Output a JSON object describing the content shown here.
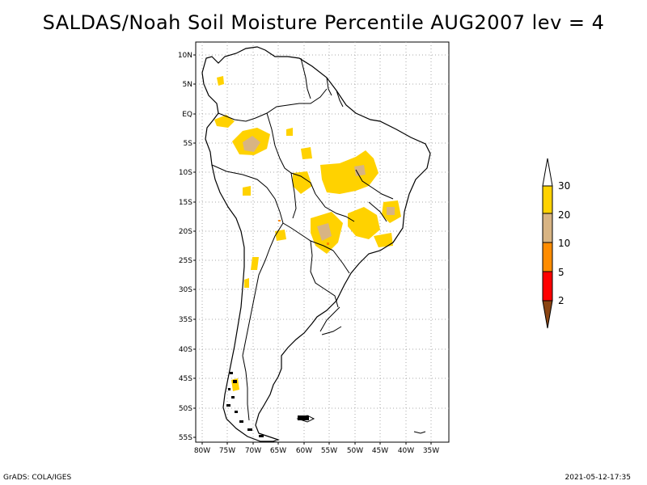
{
  "title": "SALDAS/Noah Soil Moisture Percentile AUG2007 lev = 4",
  "footer": {
    "left": "GrADS: COLA/IGES",
    "right": "2021-05-12-17:35"
  },
  "map": {
    "lat_labels": [
      "10N",
      "5N",
      "EQ",
      "5S",
      "10S",
      "15S",
      "20S",
      "25S",
      "30S",
      "35S",
      "40S",
      "45S",
      "50S",
      "55S"
    ],
    "lon_labels": [
      "80W",
      "75W",
      "70W",
      "65W",
      "60W",
      "55W",
      "50W",
      "45W",
      "40W",
      "35W"
    ]
  },
  "legend": {
    "labels": [
      "30",
      "20",
      "10",
      "5",
      "2"
    ],
    "colors": {
      "above": "#ffffff",
      "c20_30": "#ffd200",
      "c10_20": "#d8b483",
      "c5_10": "#ff8c00",
      "c2_5": "#ff0000",
      "below": "#8b4513"
    }
  }
}
